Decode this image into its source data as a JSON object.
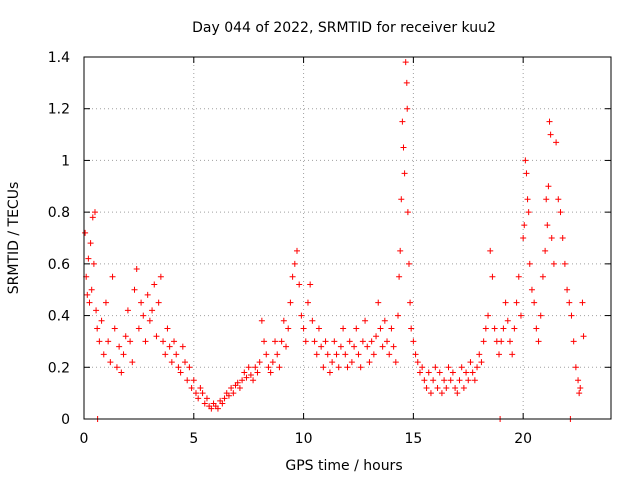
{
  "chart_data": {
    "type": "scatter",
    "title": "Day 044 of 2022, SRMTID for receiver kuu2",
    "xlabel": "GPS time / hours",
    "ylabel": "SRMTID / TECUs",
    "xlim": [
      0,
      24
    ],
    "ylim": [
      0,
      1.4
    ],
    "x_ticks": [
      0,
      5,
      10,
      15,
      20
    ],
    "x_tick_labels": [
      "0",
      "5",
      "10",
      "15",
      "20"
    ],
    "y_ticks": [
      0,
      0.2,
      0.4,
      0.6,
      0.8,
      1,
      1.2,
      1.4
    ],
    "y_tick_labels": [
      "0",
      "0.2",
      "0.4",
      "0.6",
      "0.8",
      "1",
      "1.2",
      "1.4"
    ],
    "grid": true,
    "marker": "+",
    "series_color": "#ff0000",
    "series": [
      {
        "name": "kuu2",
        "points": [
          [
            0.05,
            0.72
          ],
          [
            0.1,
            0.55
          ],
          [
            0.15,
            0.48
          ],
          [
            0.2,
            0.62
          ],
          [
            0.25,
            0.45
          ],
          [
            0.3,
            0.68
          ],
          [
            0.35,
            0.5
          ],
          [
            0.4,
            0.78
          ],
          [
            0.45,
            0.6
          ],
          [
            0.5,
            0.8
          ],
          [
            0.55,
            0.42
          ],
          [
            0.6,
            0.35
          ],
          [
            0.62,
            0.0
          ],
          [
            0.7,
            0.3
          ],
          [
            0.8,
            0.38
          ],
          [
            0.9,
            0.25
          ],
          [
            1.0,
            0.45
          ],
          [
            1.1,
            0.3
          ],
          [
            1.2,
            0.22
          ],
          [
            1.3,
            0.55
          ],
          [
            1.4,
            0.35
          ],
          [
            1.5,
            0.2
          ],
          [
            1.6,
            0.28
          ],
          [
            1.7,
            0.18
          ],
          [
            1.8,
            0.25
          ],
          [
            1.9,
            0.32
          ],
          [
            2.0,
            0.42
          ],
          [
            2.1,
            0.3
          ],
          [
            2.2,
            0.22
          ],
          [
            2.3,
            0.5
          ],
          [
            2.4,
            0.58
          ],
          [
            2.5,
            0.35
          ],
          [
            2.6,
            0.45
          ],
          [
            2.7,
            0.4
          ],
          [
            2.8,
            0.3
          ],
          [
            2.9,
            0.48
          ],
          [
            3.0,
            0.38
          ],
          [
            3.1,
            0.42
          ],
          [
            3.2,
            0.52
          ],
          [
            3.3,
            0.32
          ],
          [
            3.4,
            0.45
          ],
          [
            3.5,
            0.55
          ],
          [
            3.6,
            0.3
          ],
          [
            3.7,
            0.25
          ],
          [
            3.8,
            0.35
          ],
          [
            3.9,
            0.28
          ],
          [
            4.0,
            0.22
          ],
          [
            4.1,
            0.3
          ],
          [
            4.2,
            0.25
          ],
          [
            4.3,
            0.2
          ],
          [
            4.4,
            0.18
          ],
          [
            4.5,
            0.28
          ],
          [
            4.6,
            0.22
          ],
          [
            4.7,
            0.15
          ],
          [
            4.8,
            0.2
          ],
          [
            4.9,
            0.12
          ],
          [
            5.0,
            0.15
          ],
          [
            5.1,
            0.1
          ],
          [
            5.2,
            0.08
          ],
          [
            5.3,
            0.12
          ],
          [
            5.4,
            0.1
          ],
          [
            5.5,
            0.06
          ],
          [
            5.6,
            0.08
          ],
          [
            5.7,
            0.05
          ],
          [
            5.8,
            0.04
          ],
          [
            5.9,
            0.06
          ],
          [
            6.0,
            0.05
          ],
          [
            6.1,
            0.04
          ],
          [
            6.2,
            0.07
          ],
          [
            6.3,
            0.06
          ],
          [
            6.4,
            0.08
          ],
          [
            6.5,
            0.1
          ],
          [
            6.6,
            0.09
          ],
          [
            6.7,
            0.12
          ],
          [
            6.8,
            0.1
          ],
          [
            6.9,
            0.13
          ],
          [
            7.0,
            0.14
          ],
          [
            7.1,
            0.12
          ],
          [
            7.2,
            0.15
          ],
          [
            7.3,
            0.18
          ],
          [
            7.4,
            0.16
          ],
          [
            7.5,
            0.2
          ],
          [
            7.6,
            0.17
          ],
          [
            7.7,
            0.15
          ],
          [
            7.8,
            0.2
          ],
          [
            7.9,
            0.18
          ],
          [
            8.0,
            0.22
          ],
          [
            8.1,
            0.38
          ],
          [
            8.2,
            0.3
          ],
          [
            8.3,
            0.25
          ],
          [
            8.4,
            0.2
          ],
          [
            8.5,
            0.18
          ],
          [
            8.6,
            0.22
          ],
          [
            8.7,
            0.3
          ],
          [
            8.8,
            0.25
          ],
          [
            8.9,
            0.2
          ],
          [
            9.0,
            0.3
          ],
          [
            9.1,
            0.38
          ],
          [
            9.2,
            0.28
          ],
          [
            9.3,
            0.35
          ],
          [
            9.4,
            0.45
          ],
          [
            9.5,
            0.55
          ],
          [
            9.6,
            0.6
          ],
          [
            9.7,
            0.65
          ],
          [
            9.8,
            0.52
          ],
          [
            9.9,
            0.4
          ],
          [
            10.0,
            0.35
          ],
          [
            10.1,
            0.3
          ],
          [
            10.2,
            0.45
          ],
          [
            10.3,
            0.52
          ],
          [
            10.4,
            0.38
          ],
          [
            10.5,
            0.3
          ],
          [
            10.6,
            0.25
          ],
          [
            10.7,
            0.35
          ],
          [
            10.8,
            0.28
          ],
          [
            10.9,
            0.2
          ],
          [
            11.0,
            0.3
          ],
          [
            11.1,
            0.25
          ],
          [
            11.2,
            0.18
          ],
          [
            11.3,
            0.22
          ],
          [
            11.4,
            0.3
          ],
          [
            11.5,
            0.25
          ],
          [
            11.6,
            0.2
          ],
          [
            11.7,
            0.28
          ],
          [
            11.8,
            0.35
          ],
          [
            11.9,
            0.25
          ],
          [
            12.0,
            0.2
          ],
          [
            12.1,
            0.3
          ],
          [
            12.2,
            0.22
          ],
          [
            12.3,
            0.28
          ],
          [
            12.4,
            0.35
          ],
          [
            12.5,
            0.25
          ],
          [
            12.6,
            0.2
          ],
          [
            12.7,
            0.3
          ],
          [
            12.8,
            0.38
          ],
          [
            12.9,
            0.28
          ],
          [
            13.0,
            0.22
          ],
          [
            13.1,
            0.3
          ],
          [
            13.2,
            0.25
          ],
          [
            13.3,
            0.32
          ],
          [
            13.4,
            0.45
          ],
          [
            13.5,
            0.35
          ],
          [
            13.6,
            0.28
          ],
          [
            13.7,
            0.38
          ],
          [
            13.8,
            0.3
          ],
          [
            13.9,
            0.25
          ],
          [
            14.0,
            0.35
          ],
          [
            14.1,
            0.28
          ],
          [
            14.2,
            0.22
          ],
          [
            14.3,
            0.4
          ],
          [
            14.35,
            0.55
          ],
          [
            14.4,
            0.65
          ],
          [
            14.45,
            0.85
          ],
          [
            14.5,
            1.15
          ],
          [
            14.55,
            1.05
          ],
          [
            14.6,
            0.95
          ],
          [
            14.65,
            1.38
          ],
          [
            14.7,
            1.3
          ],
          [
            14.72,
            1.2
          ],
          [
            14.75,
            0.8
          ],
          [
            14.8,
            0.6
          ],
          [
            14.85,
            0.45
          ],
          [
            14.9,
            0.35
          ],
          [
            15.0,
            0.3
          ],
          [
            15.1,
            0.25
          ],
          [
            15.2,
            0.22
          ],
          [
            15.3,
            0.18
          ],
          [
            15.4,
            0.2
          ],
          [
            15.5,
            0.15
          ],
          [
            15.6,
            0.12
          ],
          [
            15.7,
            0.18
          ],
          [
            15.8,
            0.1
          ],
          [
            15.9,
            0.15
          ],
          [
            16.0,
            0.2
          ],
          [
            16.1,
            0.12
          ],
          [
            16.2,
            0.18
          ],
          [
            16.3,
            0.1
          ],
          [
            16.4,
            0.15
          ],
          [
            16.5,
            0.12
          ],
          [
            16.6,
            0.2
          ],
          [
            16.7,
            0.15
          ],
          [
            16.8,
            0.18
          ],
          [
            16.9,
            0.12
          ],
          [
            17.0,
            0.1
          ],
          [
            17.1,
            0.15
          ],
          [
            17.2,
            0.2
          ],
          [
            17.3,
            0.12
          ],
          [
            17.4,
            0.18
          ],
          [
            17.5,
            0.15
          ],
          [
            17.6,
            0.22
          ],
          [
            17.7,
            0.18
          ],
          [
            17.8,
            0.15
          ],
          [
            17.9,
            0.2
          ],
          [
            18.0,
            0.25
          ],
          [
            18.1,
            0.22
          ],
          [
            18.2,
            0.3
          ],
          [
            18.3,
            0.35
          ],
          [
            18.4,
            0.4
          ],
          [
            18.5,
            0.65
          ],
          [
            18.6,
            0.55
          ],
          [
            18.7,
            0.35
          ],
          [
            18.8,
            0.3
          ],
          [
            18.9,
            0.25
          ],
          [
            18.95,
            0.0
          ],
          [
            19.0,
            0.3
          ],
          [
            19.1,
            0.35
          ],
          [
            19.2,
            0.45
          ],
          [
            19.3,
            0.38
          ],
          [
            19.4,
            0.3
          ],
          [
            19.5,
            0.25
          ],
          [
            19.6,
            0.35
          ],
          [
            19.7,
            0.45
          ],
          [
            19.8,
            0.55
          ],
          [
            19.9,
            0.4
          ],
          [
            20.0,
            0.7
          ],
          [
            20.05,
            0.75
          ],
          [
            20.1,
            1.0
          ],
          [
            20.15,
            0.95
          ],
          [
            20.2,
            0.85
          ],
          [
            20.25,
            0.8
          ],
          [
            20.3,
            0.6
          ],
          [
            20.4,
            0.5
          ],
          [
            20.5,
            0.45
          ],
          [
            20.6,
            0.35
          ],
          [
            20.7,
            0.3
          ],
          [
            20.8,
            0.4
          ],
          [
            20.9,
            0.55
          ],
          [
            21.0,
            0.65
          ],
          [
            21.05,
            0.85
          ],
          [
            21.1,
            0.75
          ],
          [
            21.15,
            0.9
          ],
          [
            21.2,
            1.15
          ],
          [
            21.25,
            1.1
          ],
          [
            21.3,
            0.7
          ],
          [
            21.4,
            0.6
          ],
          [
            21.5,
            1.07
          ],
          [
            21.6,
            0.85
          ],
          [
            21.7,
            0.8
          ],
          [
            21.8,
            0.7
          ],
          [
            21.9,
            0.6
          ],
          [
            22.0,
            0.5
          ],
          [
            22.1,
            0.45
          ],
          [
            22.15,
            0.0
          ],
          [
            22.2,
            0.4
          ],
          [
            22.3,
            0.3
          ],
          [
            22.4,
            0.2
          ],
          [
            22.5,
            0.15
          ],
          [
            22.55,
            0.1
          ],
          [
            22.6,
            0.12
          ],
          [
            22.7,
            0.45
          ],
          [
            22.75,
            0.32
          ]
        ]
      }
    ]
  }
}
